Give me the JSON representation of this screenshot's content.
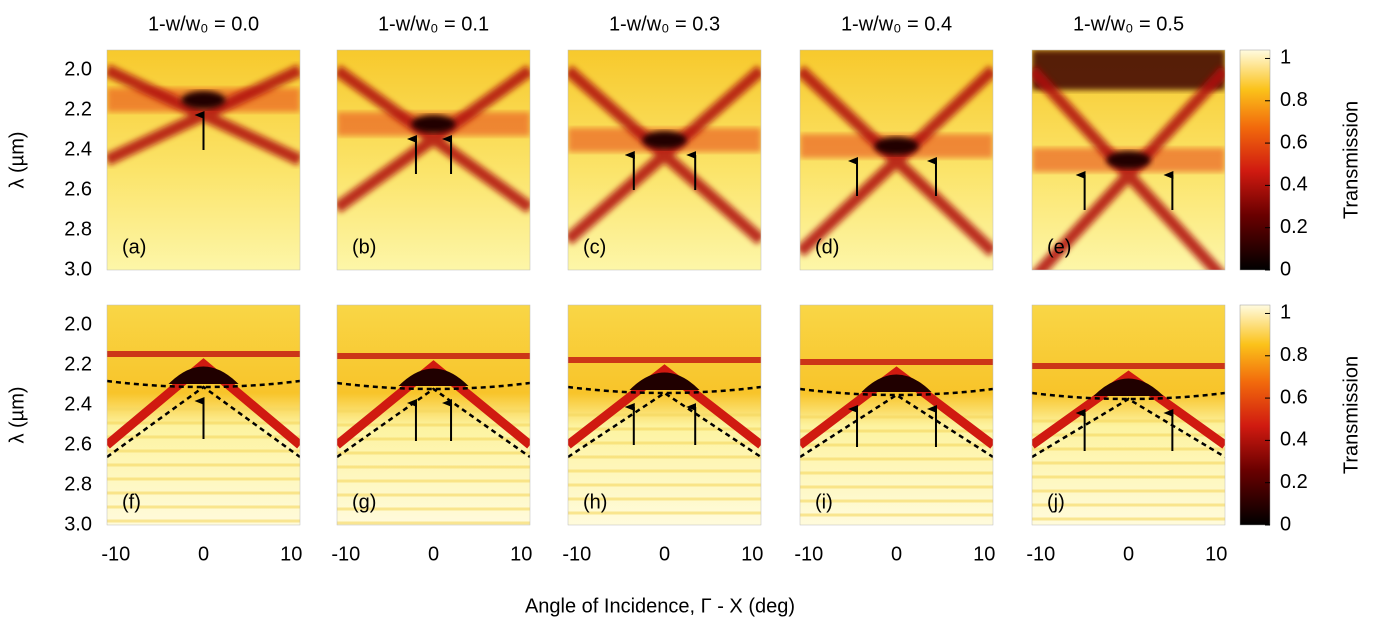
{
  "chart_data": {
    "type": "heatmap",
    "column_titles": [
      "1-w/w₀ = 0.0",
      "1-w/w₀ = 0.1",
      "1-w/w₀ = 0.3",
      "1-w/w₀ = 0.4",
      "1-w/w₀ = 0.5"
    ],
    "panel_labels": [
      "(a)",
      "(b)",
      "(c)",
      "(d)",
      "(e)",
      "(f)",
      "(g)",
      "(h)",
      "(i)",
      "(j)"
    ],
    "x_label": "Angle of Incidence, Γ - X (deg)",
    "y_label": "λ (µm)",
    "colorbar_label": "Transmission",
    "xlim": [
      -11,
      11
    ],
    "xticks": [
      -10,
      0,
      10
    ],
    "ylim": [
      1.9,
      3.0
    ],
    "yticks": [
      {
        "value": 2,
        "label": "2.0"
      },
      2.2,
      2.4,
      2.6,
      2.8,
      {
        "value": 3,
        "label": "3.0"
      }
    ],
    "clim": [
      0,
      1.04
    ],
    "cticks": [
      0,
      0.2,
      0.4,
      0.6,
      0.8,
      1
    ]
  }
}
